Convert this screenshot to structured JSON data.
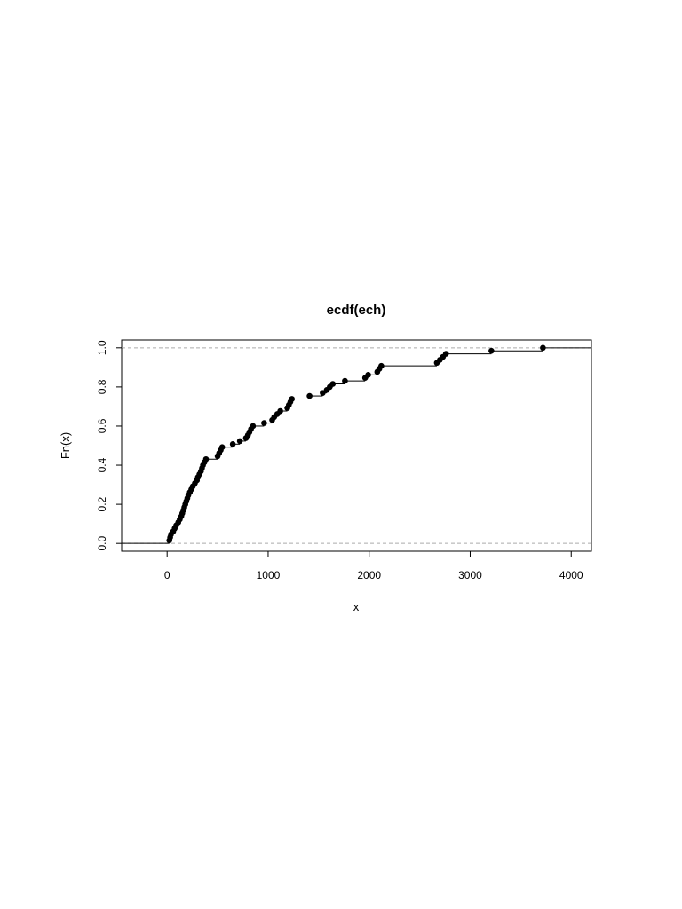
{
  "chart_data": {
    "type": "scatter",
    "subtype": "ecdf-step",
    "title": "ecdf(ech)",
    "xlabel": "x",
    "ylabel": "Fn(x)",
    "xlim": [
      -450,
      4200
    ],
    "ylim": [
      -0.04,
      1.04
    ],
    "x_ticks": [
      0,
      1000,
      2000,
      3000,
      4000
    ],
    "x_tick_labels": [
      "0",
      "1000",
      "2000",
      "3000",
      "4000"
    ],
    "y_ticks": [
      0.0,
      0.2,
      0.4,
      0.6,
      0.8,
      1.0
    ],
    "y_tick_labels": [
      "0.0",
      "0.2",
      "0.4",
      "0.6",
      "0.8",
      "1.0"
    ],
    "reference_lines": [
      0,
      1
    ],
    "grid": false,
    "legend": "none",
    "x": [
      22,
      30,
      38,
      60,
      75,
      90,
      110,
      125,
      140,
      150,
      160,
      170,
      180,
      190,
      200,
      210,
      225,
      240,
      255,
      275,
      295,
      305,
      320,
      335,
      345,
      355,
      370,
      385,
      500,
      515,
      530,
      545,
      650,
      720,
      780,
      800,
      815,
      830,
      850,
      960,
      1040,
      1060,
      1090,
      1120,
      1190,
      1205,
      1220,
      1235,
      1410,
      1540,
      1580,
      1610,
      1640,
      1760,
      1960,
      1990,
      2080,
      2100,
      2120,
      2670,
      2700,
      2730,
      2760,
      3210,
      3720
    ],
    "y": [
      0.0154,
      0.0308,
      0.0462,
      0.0615,
      0.0769,
      0.0923,
      0.1077,
      0.1231,
      0.1385,
      0.1538,
      0.1692,
      0.1846,
      0.2,
      0.2154,
      0.2308,
      0.2462,
      0.2615,
      0.2769,
      0.2923,
      0.3077,
      0.3231,
      0.3385,
      0.3538,
      0.3692,
      0.3846,
      0.4,
      0.4154,
      0.4308,
      0.4462,
      0.4615,
      0.4769,
      0.4923,
      0.5077,
      0.5231,
      0.5385,
      0.5538,
      0.5692,
      0.5846,
      0.6,
      0.6154,
      0.6308,
      0.6462,
      0.6615,
      0.6769,
      0.6923,
      0.7077,
      0.7231,
      0.7385,
      0.7538,
      0.7692,
      0.7846,
      0.8,
      0.8154,
      0.8308,
      0.8462,
      0.8615,
      0.8769,
      0.8923,
      0.9077,
      0.9231,
      0.9385,
      0.9538,
      0.9692,
      0.9846,
      1.0
    ]
  }
}
